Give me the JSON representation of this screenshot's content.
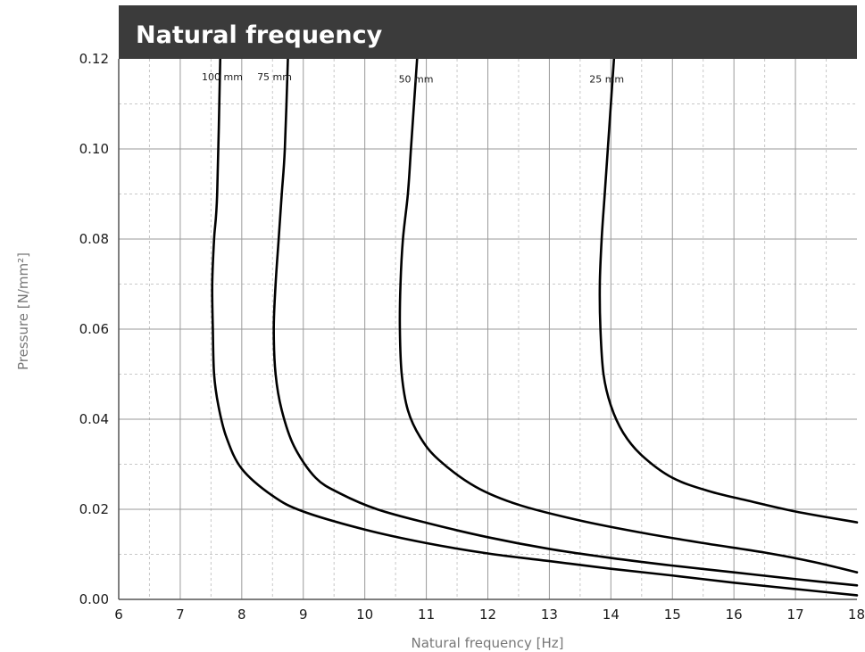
{
  "chart_data": {
    "type": "line",
    "title": "Natural frequency",
    "xlabel": "Natural frequency [Hz]",
    "ylabel": "Pressure [N/mm²]",
    "xlim": [
      6,
      18
    ],
    "ylim": [
      0,
      0.12
    ],
    "x_ticks": [
      "6",
      "7",
      "8",
      "9",
      "10",
      "11",
      "12",
      "13",
      "14",
      "15",
      "16",
      "17",
      "18"
    ],
    "y_ticks": [
      "0.00",
      "0.02",
      "0.04",
      "0.06",
      "0.08",
      "0.10",
      "0.12"
    ],
    "grid": true,
    "legend": "none",
    "colors": {
      "title_bar": "#3b3b3b",
      "curve": "#000000",
      "grid_major": "#9a9a9a",
      "grid_minor": "#c8c8c8"
    },
    "series": [
      {
        "name": "100 mm",
        "points": [
          [
            7.65,
            0.12
          ],
          [
            7.6,
            0.09
          ],
          [
            7.55,
            0.08
          ],
          [
            7.52,
            0.07
          ],
          [
            7.53,
            0.06
          ],
          [
            7.55,
            0.05
          ],
          [
            7.62,
            0.043
          ],
          [
            7.75,
            0.036
          ],
          [
            8.0,
            0.029
          ],
          [
            8.5,
            0.023
          ],
          [
            9.0,
            0.0195
          ],
          [
            10.0,
            0.0155
          ],
          [
            11.0,
            0.0125
          ],
          [
            12.0,
            0.0102
          ],
          [
            13.0,
            0.0085
          ],
          [
            14.0,
            0.0068
          ],
          [
            15.0,
            0.0053
          ],
          [
            16.0,
            0.0037
          ],
          [
            17.0,
            0.0023
          ],
          [
            18.0,
            0.0009
          ]
        ]
      },
      {
        "name": "75 mm",
        "points": [
          [
            8.75,
            0.12
          ],
          [
            8.7,
            0.1
          ],
          [
            8.65,
            0.09
          ],
          [
            8.6,
            0.08
          ],
          [
            8.55,
            0.07
          ],
          [
            8.52,
            0.06
          ],
          [
            8.55,
            0.05
          ],
          [
            8.65,
            0.042
          ],
          [
            8.85,
            0.034
          ],
          [
            9.2,
            0.027
          ],
          [
            9.6,
            0.0235
          ],
          [
            10.2,
            0.02
          ],
          [
            11.0,
            0.017
          ],
          [
            12.0,
            0.0138
          ],
          [
            13.0,
            0.0112
          ],
          [
            14.0,
            0.0092
          ],
          [
            15.0,
            0.0075
          ],
          [
            16.0,
            0.006
          ],
          [
            17.0,
            0.0045
          ],
          [
            18.0,
            0.0031
          ]
        ]
      },
      {
        "name": "50 mm",
        "points": [
          [
            10.85,
            0.12
          ],
          [
            10.8,
            0.11
          ],
          [
            10.75,
            0.1
          ],
          [
            10.7,
            0.09
          ],
          [
            10.62,
            0.08
          ],
          [
            10.58,
            0.07
          ],
          [
            10.57,
            0.06
          ],
          [
            10.6,
            0.05
          ],
          [
            10.7,
            0.042
          ],
          [
            10.9,
            0.036
          ],
          [
            11.2,
            0.031
          ],
          [
            11.8,
            0.025
          ],
          [
            12.5,
            0.021
          ],
          [
            13.5,
            0.0175
          ],
          [
            14.5,
            0.0148
          ],
          [
            15.5,
            0.0125
          ],
          [
            16.5,
            0.0104
          ],
          [
            17.3,
            0.0083
          ],
          [
            18.0,
            0.006
          ]
        ]
      },
      {
        "name": "25 mm",
        "points": [
          [
            14.05,
            0.12
          ],
          [
            14.0,
            0.11
          ],
          [
            13.95,
            0.1
          ],
          [
            13.9,
            0.09
          ],
          [
            13.85,
            0.08
          ],
          [
            13.82,
            0.07
          ],
          [
            13.83,
            0.06
          ],
          [
            13.88,
            0.05
          ],
          [
            14.0,
            0.043
          ],
          [
            14.2,
            0.037
          ],
          [
            14.5,
            0.032
          ],
          [
            15.0,
            0.027
          ],
          [
            15.6,
            0.024
          ],
          [
            16.2,
            0.022
          ],
          [
            17.0,
            0.0195
          ],
          [
            18.0,
            0.0171
          ]
        ]
      }
    ],
    "series_labels": [
      {
        "name": "100 mm",
        "x": 7.35,
        "y": 0.116
      },
      {
        "name": "75 mm",
        "x": 8.25,
        "y": 0.116
      },
      {
        "name": "50 mm",
        "x": 10.55,
        "y": 0.1155
      },
      {
        "name": "25 mm",
        "x": 13.65,
        "y": 0.1155
      }
    ]
  }
}
